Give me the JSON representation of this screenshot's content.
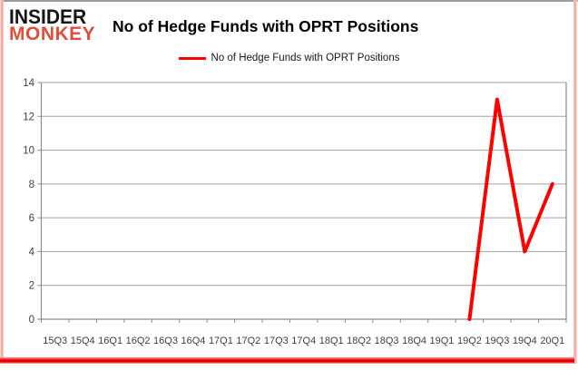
{
  "brand": {
    "line1": "INSIDER",
    "line2": "MONKEY",
    "line1_color": "#151515",
    "line2_color": "#dd4f3a"
  },
  "header": {
    "title": "No of Hedge Funds with OPRT Positions"
  },
  "legend": {
    "label": "No of Hedge Funds with OPRT Positions",
    "line_color": "#ff0000"
  },
  "chart_data": {
    "type": "line",
    "title": "No of Hedge Funds with OPRT Positions",
    "categories": [
      "15Q3",
      "15Q4",
      "16Q1",
      "16Q2",
      "16Q3",
      "16Q4",
      "17Q1",
      "17Q2",
      "17Q3",
      "17Q4",
      "18Q1",
      "18Q2",
      "18Q3",
      "18Q4",
      "19Q1",
      "19Q2",
      "19Q3",
      "19Q4",
      "20Q1"
    ],
    "series": [
      {
        "name": "No of Hedge Funds with OPRT Positions",
        "color": "#ff0000",
        "values": [
          null,
          null,
          null,
          null,
          null,
          null,
          null,
          null,
          null,
          null,
          null,
          null,
          null,
          null,
          null,
          0,
          13,
          4,
          8
        ]
      }
    ],
    "ylim": [
      0,
      14
    ],
    "yticks": [
      0,
      2,
      4,
      6,
      8,
      10,
      12,
      14
    ],
    "grid": "horizontal",
    "legend_position": "top-center",
    "xlabel": "",
    "ylabel": ""
  },
  "chart_style": {
    "grid_color": "#a3a3a3",
    "axis_color": "#8c8c8c",
    "label_color": "#3f3f3f"
  }
}
